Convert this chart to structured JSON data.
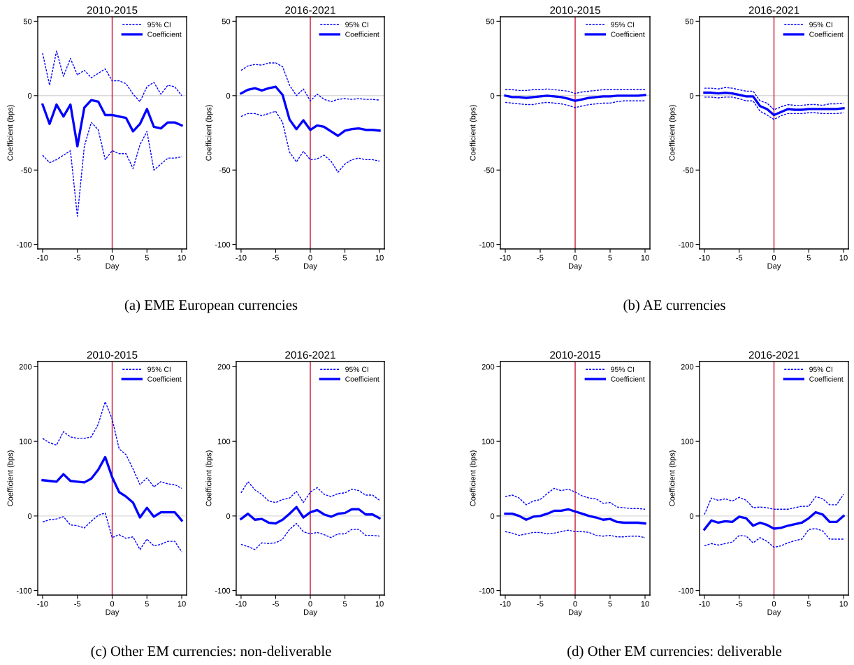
{
  "chart_data": [
    {
      "type": "line",
      "title": "2010-2015",
      "xlabel": "Day",
      "ylabel": "Coefficient (bps)",
      "x": [
        -10,
        -9,
        -8,
        -7,
        -6,
        -5,
        -4,
        -3,
        -2,
        -1,
        0,
        1,
        2,
        3,
        4,
        5,
        6,
        7,
        8,
        9,
        10
      ],
      "xlim": [
        -10.7,
        10.7
      ],
      "xticks": [
        -10,
        -5,
        0,
        5,
        10
      ],
      "ylim": [
        -103,
        53
      ],
      "yticks": [
        -100,
        -50,
        0,
        50
      ],
      "legend": "top right",
      "annotations": [
        "(a) EME European currencies"
      ],
      "ref_lines": [
        {
          "axis": "y",
          "value": 0,
          "color": "#d9d9d9"
        },
        {
          "axis": "x",
          "value": 0,
          "color": "#c8102e"
        }
      ],
      "series": [
        {
          "name": "95% CI",
          "color": "#0000ff",
          "line_style": "dashed",
          "values": [
            28.5,
            7,
            30,
            13,
            25,
            14,
            17,
            12,
            15,
            18,
            10,
            10,
            8,
            1,
            -4,
            6,
            9,
            1,
            7,
            6,
            0
          ]
        },
        {
          "name": "Coefficient",
          "color": "#0000ff",
          "line_style": "solid",
          "values": [
            -6,
            -19,
            -6,
            -14,
            -6,
            -34,
            -8,
            -3,
            -4,
            -13,
            -13,
            -14,
            -15,
            -24,
            -19,
            -9,
            -21,
            -22,
            -18,
            -18,
            -20
          ]
        },
        {
          "color": "#0000ff",
          "line_style": "dashed",
          "values": [
            -40,
            -45,
            -43,
            -40,
            -37,
            -81,
            -34,
            -18,
            -23,
            -43,
            -37,
            -39,
            -39,
            -49,
            -33,
            -24,
            -50,
            -46,
            -42,
            -42,
            -41
          ]
        }
      ]
    },
    {
      "type": "line",
      "title": "2016-2021",
      "xlabel": "Day",
      "ylabel": "Coefficient (bps)",
      "x": [
        -10,
        -9,
        -8,
        -7,
        -6,
        -5,
        -4,
        -3,
        -2,
        -1,
        0,
        1,
        2,
        3,
        4,
        5,
        6,
        7,
        8,
        9,
        10
      ],
      "xlim": [
        -10.7,
        10.7
      ],
      "xticks": [
        -10,
        -5,
        0,
        5,
        10
      ],
      "ylim": [
        -103,
        53
      ],
      "yticks": [
        -100,
        -50,
        0,
        50
      ],
      "legend": "top right",
      "ref_lines": [
        {
          "axis": "y",
          "value": 0,
          "color": "#d9d9d9"
        },
        {
          "axis": "x",
          "value": 0,
          "color": "#c8102e"
        }
      ],
      "series": [
        {
          "name": "95% CI",
          "color": "#0000ff",
          "line_style": "dashed",
          "values": [
            17,
            20,
            21,
            20.5,
            22,
            22,
            19.5,
            7,
            0,
            4.5,
            -3.5,
            1,
            -2.5,
            -4,
            -2.5,
            -2,
            -2.5,
            -2,
            -2.5,
            -2.5,
            -3
          ]
        },
        {
          "name": "Coefficient",
          "color": "#0000ff",
          "line_style": "solid",
          "values": [
            1.5,
            4,
            5,
            3.5,
            5,
            6,
            0.5,
            -16,
            -22.5,
            -16.5,
            -23,
            -20,
            -21,
            -24,
            -27,
            -23.5,
            -22.5,
            -22,
            -23,
            -23,
            -23.5
          ]
        },
        {
          "color": "#0000ff",
          "line_style": "dashed",
          "values": [
            -14,
            -12,
            -12,
            -13.5,
            -12,
            -10.5,
            -18,
            -38,
            -44.5,
            -37.5,
            -43,
            -42.5,
            -40,
            -44,
            -51.5,
            -46,
            -43,
            -42,
            -43,
            -43,
            -44
          ]
        }
      ]
    },
    {
      "type": "line",
      "title": "2010-2015",
      "xlabel": "Day",
      "ylabel": "Coefficient (bps)",
      "x": [
        -10,
        -9,
        -8,
        -7,
        -6,
        -5,
        -4,
        -3,
        -2,
        -1,
        0,
        1,
        2,
        3,
        4,
        5,
        6,
        7,
        8,
        9,
        10
      ],
      "xlim": [
        -10.7,
        10.7
      ],
      "xticks": [
        -10,
        -5,
        0,
        5,
        10
      ],
      "ylim": [
        -103,
        53
      ],
      "yticks": [
        -100,
        -50,
        0,
        50
      ],
      "legend": "top right",
      "annotations": [
        "(b) AE currencies"
      ],
      "ref_lines": [
        {
          "axis": "y",
          "value": 0,
          "color": "#d9d9d9"
        },
        {
          "axis": "x",
          "value": 0,
          "color": "#c8102e"
        }
      ],
      "series": [
        {
          "name": "95% CI",
          "color": "#0000ff",
          "line_style": "dashed",
          "values": [
            4,
            4,
            3.5,
            3.5,
            4,
            4,
            4.5,
            4,
            3.5,
            3,
            1.5,
            2.5,
            3,
            3.5,
            4,
            4,
            4,
            4,
            4,
            4,
            4
          ]
        },
        {
          "name": "Coefficient",
          "color": "#0000ff",
          "line_style": "solid",
          "values": [
            0,
            -1,
            -1,
            -1.5,
            -1,
            -0.5,
            0,
            -0.5,
            -1,
            -2,
            -3.5,
            -2.5,
            -1.5,
            -1,
            -0.5,
            -0.5,
            0,
            0,
            0,
            0,
            0.5
          ]
        },
        {
          "color": "#0000ff",
          "line_style": "dashed",
          "values": [
            -4.5,
            -5,
            -5.5,
            -6,
            -6,
            -5,
            -4.5,
            -5,
            -5.5,
            -6.5,
            -8,
            -7,
            -6,
            -5.5,
            -5,
            -5,
            -4,
            -3.5,
            -3.5,
            -3.5,
            -3.5
          ]
        }
      ]
    },
    {
      "type": "line",
      "title": "2016-2021",
      "xlabel": "Day",
      "ylabel": "Coefficient (bps)",
      "x": [
        -10,
        -9,
        -8,
        -7,
        -6,
        -5,
        -4,
        -3,
        -2,
        -1,
        0,
        1,
        2,
        3,
        4,
        5,
        6,
        7,
        8,
        9,
        10
      ],
      "xlim": [
        -10.7,
        10.7
      ],
      "xticks": [
        -10,
        -5,
        0,
        5,
        10
      ],
      "ylim": [
        -103,
        53
      ],
      "yticks": [
        -100,
        -50,
        0,
        50
      ],
      "legend": "top right",
      "ref_lines": [
        {
          "axis": "y",
          "value": 0,
          "color": "#d9d9d9"
        },
        {
          "axis": "x",
          "value": 0,
          "color": "#c8102e"
        }
      ],
      "series": [
        {
          "name": "95% CI",
          "color": "#0000ff",
          "line_style": "dashed",
          "values": [
            5,
            5,
            4.5,
            5.5,
            5,
            4,
            3,
            3,
            -3.5,
            -5,
            -9.5,
            -7.5,
            -6,
            -6.5,
            -6.5,
            -6,
            -6,
            -6.5,
            -5.5,
            -5.5,
            -5
          ]
        },
        {
          "name": "Coefficient",
          "color": "#0000ff",
          "line_style": "solid",
          "values": [
            2,
            2,
            1.5,
            2,
            1.5,
            0.5,
            -0.5,
            -0.5,
            -7,
            -9,
            -13,
            -11,
            -9,
            -9.5,
            -9.5,
            -9,
            -9,
            -9,
            -9,
            -9,
            -8.5
          ]
        },
        {
          "color": "#0000ff",
          "line_style": "dashed",
          "values": [
            -1,
            -1,
            -1.5,
            -1,
            -1,
            -2,
            -3.5,
            -3.5,
            -10.5,
            -13,
            -16,
            -13.5,
            -12,
            -12,
            -12,
            -11.5,
            -11.5,
            -12,
            -12,
            -12,
            -11.5
          ]
        }
      ]
    },
    {
      "type": "line",
      "title": "2010-2015",
      "xlabel": "Day",
      "ylabel": "Coefficient (bps)",
      "x": [
        -10,
        -9,
        -8,
        -7,
        -6,
        -5,
        -4,
        -3,
        -2,
        -1,
        0,
        1,
        2,
        3,
        4,
        5,
        6,
        7,
        8,
        9,
        10
      ],
      "xlim": [
        -10.7,
        10.7
      ],
      "xticks": [
        -10,
        -5,
        0,
        5,
        10
      ],
      "ylim": [
        -106,
        207
      ],
      "yticks": [
        -100,
        0,
        100,
        200
      ],
      "legend": "top right",
      "annotations": [
        "(c) Other EM currencies: non-deliverable"
      ],
      "ref_lines": [
        {
          "axis": "y",
          "value": 0,
          "color": "#d9d9d9"
        },
        {
          "axis": "x",
          "value": 0,
          "color": "#c8102e"
        }
      ],
      "series": [
        {
          "name": "95% CI",
          "color": "#0000ff",
          "line_style": "dashed",
          "values": [
            104,
            98,
            95,
            113,
            106,
            104,
            104,
            106,
            123,
            153,
            130,
            90,
            82,
            63,
            42,
            51,
            39,
            46,
            43,
            42,
            37
          ]
        },
        {
          "name": "Coefficient",
          "color": "#0000ff",
          "line_style": "solid",
          "values": [
            48,
            47,
            46,
            56,
            47,
            46,
            45,
            50,
            62,
            79,
            52,
            32,
            26,
            18,
            -2,
            11,
            -1,
            5,
            5,
            5,
            -6
          ]
        },
        {
          "color": "#0000ff",
          "line_style": "dashed",
          "values": [
            -8,
            -5,
            -4,
            -1,
            -12,
            -13,
            -16,
            -7,
            1,
            4,
            -29,
            -25,
            -30,
            -28,
            -45,
            -31,
            -40,
            -38,
            -34,
            -34,
            -48
          ]
        }
      ]
    },
    {
      "type": "line",
      "title": "2016-2021",
      "xlabel": "Day",
      "ylabel": "Coefficient (bps)",
      "x": [
        -10,
        -9,
        -8,
        -7,
        -6,
        -5,
        -4,
        -3,
        -2,
        -1,
        0,
        1,
        2,
        3,
        4,
        5,
        6,
        7,
        8,
        9,
        10
      ],
      "xlim": [
        -10.7,
        10.7
      ],
      "xticks": [
        -10,
        -5,
        0,
        5,
        10
      ],
      "ylim": [
        -106,
        207
      ],
      "yticks": [
        -100,
        0,
        100,
        200
      ],
      "legend": "top right",
      "ref_lines": [
        {
          "axis": "y",
          "value": 0,
          "color": "#d9d9d9"
        },
        {
          "axis": "x",
          "value": 0,
          "color": "#c8102e"
        }
      ],
      "series": [
        {
          "name": "95% CI",
          "color": "#0000ff",
          "line_style": "dashed",
          "values": [
            31,
            46,
            35,
            29,
            20,
            18,
            22,
            24,
            33,
            18,
            32,
            38,
            29,
            26,
            30,
            31,
            36,
            34,
            28,
            28,
            21
          ]
        },
        {
          "name": "Coefficient",
          "color": "#0000ff",
          "line_style": "solid",
          "values": [
            -4,
            3,
            -5,
            -4,
            -9,
            -10,
            -5,
            3,
            12,
            -2,
            5,
            8,
            2,
            -1,
            3,
            4,
            9,
            9,
            2,
            2,
            -3
          ]
        },
        {
          "color": "#0000ff",
          "line_style": "dashed",
          "values": [
            -38,
            -41,
            -45,
            -36,
            -37,
            -36,
            -31,
            -18,
            -10,
            -21,
            -24,
            -22,
            -25,
            -29,
            -24,
            -24,
            -18,
            -18,
            -26,
            -26,
            -27
          ]
        }
      ]
    },
    {
      "type": "line",
      "title": "2010-2015",
      "xlabel": "Day",
      "ylabel": "Coefficient (bps)",
      "x": [
        -10,
        -9,
        -8,
        -7,
        -6,
        -5,
        -4,
        -3,
        -2,
        -1,
        0,
        1,
        2,
        3,
        4,
        5,
        6,
        7,
        8,
        9,
        10
      ],
      "xlim": [
        -10.7,
        10.7
      ],
      "xticks": [
        -10,
        -5,
        0,
        5,
        10
      ],
      "ylim": [
        -106,
        207
      ],
      "yticks": [
        -100,
        0,
        100,
        200
      ],
      "legend": "top right",
      "annotations": [
        "(d) Other EM currencies: deliverable"
      ],
      "ref_lines": [
        {
          "axis": "y",
          "value": 0,
          "color": "#d9d9d9"
        },
        {
          "axis": "x",
          "value": 0,
          "color": "#c8102e"
        }
      ],
      "series": [
        {
          "name": "95% CI",
          "color": "#0000ff",
          "line_style": "dashed",
          "values": [
            26,
            28,
            24,
            15,
            20,
            22,
            30,
            37,
            34,
            36,
            32,
            27,
            24,
            23,
            17,
            18,
            12,
            11,
            10,
            10,
            9
          ]
        },
        {
          "name": "Coefficient",
          "color": "#0000ff",
          "line_style": "solid",
          "values": [
            3,
            3,
            0,
            -5,
            -1,
            0,
            3,
            7,
            7,
            9,
            6,
            3,
            0,
            -2,
            -5,
            -4,
            -8,
            -9,
            -9,
            -9,
            -10
          ]
        },
        {
          "color": "#0000ff",
          "line_style": "dashed",
          "values": [
            -21,
            -23,
            -26,
            -24,
            -22,
            -22,
            -24,
            -23,
            -21,
            -19,
            -21,
            -21,
            -22,
            -26,
            -27,
            -26,
            -28,
            -28,
            -27,
            -27,
            -29
          ]
        }
      ]
    },
    {
      "type": "line",
      "title": "2016-2021",
      "xlabel": "Day",
      "ylabel": "Coefficient (bps)",
      "x": [
        -10,
        -9,
        -8,
        -7,
        -6,
        -5,
        -4,
        -3,
        -2,
        -1,
        0,
        1,
        2,
        3,
        4,
        5,
        6,
        7,
        8,
        9,
        10
      ],
      "xlim": [
        -10.7,
        10.7
      ],
      "xticks": [
        -10,
        -5,
        0,
        5,
        10
      ],
      "ylim": [
        -106,
        207
      ],
      "yticks": [
        -100,
        0,
        100,
        200
      ],
      "legend": "top right",
      "ref_lines": [
        {
          "axis": "y",
          "value": 0,
          "color": "#d9d9d9"
        },
        {
          "axis": "x",
          "value": 0,
          "color": "#c8102e"
        }
      ],
      "series": [
        {
          "name": "95% CI",
          "color": "#0000ff",
          "line_style": "dashed",
          "values": [
            2,
            24,
            21,
            23,
            20,
            25,
            21,
            11,
            12,
            11,
            9,
            9,
            9,
            11,
            13,
            13,
            26,
            23,
            15,
            15,
            29
          ]
        },
        {
          "name": "Coefficient",
          "color": "#0000ff",
          "line_style": "solid",
          "values": [
            -18,
            -6,
            -9,
            -7,
            -8,
            -1,
            -3,
            -13,
            -9,
            -12,
            -17,
            -16,
            -13,
            -11,
            -9,
            -3,
            5,
            2,
            -8,
            -8,
            0
          ]
        },
        {
          "color": "#0000ff",
          "line_style": "dashed",
          "values": [
            -40,
            -37,
            -39,
            -37,
            -35,
            -26,
            -27,
            -36,
            -29,
            -34,
            -42,
            -40,
            -36,
            -33,
            -31,
            -18,
            -17,
            -20,
            -31,
            -31,
            -31
          ]
        }
      ]
    }
  ]
}
